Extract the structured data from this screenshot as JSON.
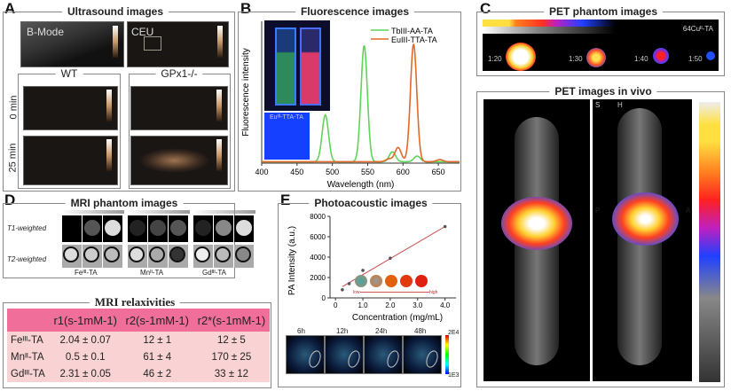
{
  "panels": {
    "A": {
      "label": "A",
      "title": "Ultrasound images",
      "bmode": "B-Mode",
      "ceu": "CEU",
      "wt": "WT",
      "gpx": "GPx1-/-",
      "row0": "0 min",
      "row25": "25 min"
    },
    "B": {
      "label": "B",
      "title": "Fluorescence images",
      "inset_label": "Euᴵᴵᴵ-TTA-TA"
    },
    "C": {
      "label": "C",
      "title_phantom": "PET phantom images",
      "title_vivo": "PET images in vivo",
      "agent": "64Cuᴵᴵ-TA",
      "dilutions": [
        "1:20",
        "1:30",
        "1:40",
        "1:50"
      ],
      "orient": [
        "S",
        "H",
        "P",
        "A"
      ]
    },
    "D": {
      "label": "D",
      "title": "MRI phantom images",
      "t1": "T1-weighted",
      "t2": "T2-weighted",
      "agents": [
        "Feᴵᴵᴵ-TA",
        "Mnᴵᴵ-TA",
        "Gdᴵᴵᴵ-TA"
      ],
      "relax_title": "MRI relaxivities",
      "table": {
        "headers": [
          "",
          "r1(s-1mM-1)",
          "r2(s-1mM-1)",
          "r2*(s-1mM-1)"
        ],
        "rows": [
          [
            "Feᴵᴵᴵ-TA",
            "2.04 ± 0.07",
            "12 ± 1",
            "12 ± 5"
          ],
          [
            "Mnᴵᴵ-TA",
            "0.5 ± 0.1",
            "61 ± 4",
            "170 ± 25"
          ],
          [
            "Gdᴵᴵᴵ-TA",
            "2.31 ± 0.05",
            "46 ± 2",
            "33 ± 12"
          ]
        ]
      }
    },
    "E": {
      "label": "E",
      "title": "Photoacoustic images",
      "low": "low",
      "high": "high",
      "times": [
        "6h",
        "12h",
        "24h",
        "48h"
      ],
      "cbar_max": "2E4",
      "cbar_min": "1E3"
    }
  },
  "chart_data": [
    {
      "type": "line",
      "title": "Fluorescence images",
      "xlabel": "Wavelength (nm)",
      "ylabel": "Fluorescence intensity",
      "xlim": [
        400,
        680
      ],
      "xticks": [
        "400",
        "450",
        "500",
        "550",
        "600",
        "650"
      ],
      "series": [
        {
          "name": "TbIII-AA-TA",
          "color": "#5fd35a",
          "peaks": [
            [
              490,
              0.33
            ],
            [
              545,
              0.82
            ],
            [
              585,
              0.07
            ],
            [
              620,
              0.04
            ]
          ]
        },
        {
          "name": "EuIII-TTA-TA",
          "color": "#e06a2a",
          "peaks": [
            [
              580,
              0.02
            ],
            [
              593,
              0.1
            ],
            [
              615,
              0.83
            ],
            [
              652,
              0.015
            ]
          ]
        }
      ]
    },
    {
      "type": "scatter",
      "title": "Photoacoustic images",
      "xlabel": "Concentration (mg/mL)",
      "ylabel": "PA Intensity (a.u.)",
      "xlim": [
        -0.2,
        4.4
      ],
      "ylim": [
        0,
        8000
      ],
      "xticks": [
        "0",
        "1.0",
        "2.0",
        "3.0",
        "4.0"
      ],
      "yticks": [
        "0",
        "2000",
        "4000",
        "6000",
        "8000"
      ],
      "x": [
        0.25,
        0.5,
        1.0,
        2.0,
        4.0
      ],
      "y": [
        800,
        1400,
        2700,
        3900,
        7000
      ],
      "fit": [
        [
          0.25,
          1100
        ],
        [
          4.0,
          7000
        ]
      ]
    }
  ]
}
